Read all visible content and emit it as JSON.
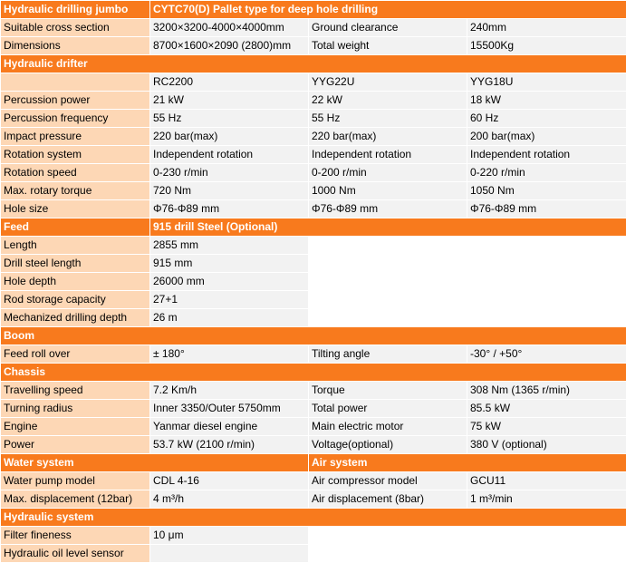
{
  "colors": {
    "header": "#f87a1d",
    "label_cell": "#fdd7b5",
    "value_cell": "#f2f2f2"
  },
  "jumbo": {
    "title": "Hydraulic drilling jumbo",
    "model": "CYTC70(D)  Pallet type for deep hole drilling",
    "cross_section_label": "Suitable cross section",
    "cross_section_value": "3200×3200-4000×4000mm",
    "ground_clearance_label": "Ground clearance",
    "ground_clearance_value": "240mm",
    "dimensions_label": "Dimensions",
    "dimensions_value": "8700×1600×2090 (2800)mm",
    "weight_label": "Total weight",
    "weight_value": "15500Kg"
  },
  "drifter": {
    "title": "Hydraulic drifter",
    "models": [
      "RC2200",
      "YYG22U",
      "YYG18U"
    ],
    "rows": [
      {
        "label": "Percussion power",
        "values": [
          "21 kW",
          "22 kW",
          "18 kW"
        ]
      },
      {
        "label": "Percussion frequency",
        "values": [
          "55 Hz",
          "55 Hz",
          "60 Hz"
        ]
      },
      {
        "label": "Impact pressure",
        "values": [
          "220  bar(max)",
          "220  bar(max)",
          "200  bar(max)"
        ]
      },
      {
        "label": "Rotation system",
        "values": [
          "Independent rotation",
          "Independent rotation",
          "Independent rotation"
        ]
      },
      {
        "label": "Rotation speed",
        "values": [
          "0-230 r/min",
          "0-200 r/min",
          "0-220 r/min"
        ]
      },
      {
        "label": "Max. rotary torque",
        "values": [
          "720 Nm",
          "1000 Nm",
          "1050 Nm"
        ]
      },
      {
        "label": "Hole size",
        "values": [
          "Φ76-Φ89 mm",
          "Φ76-Φ89 mm",
          "Φ76-Φ89 mm"
        ]
      }
    ]
  },
  "feed": {
    "title": "Feed",
    "subtitle": "915 drill Steel (Optional)",
    "rows": [
      {
        "label": "Length",
        "value": "2855 mm"
      },
      {
        "label": "Drill steel length",
        "value": "915 mm"
      },
      {
        "label": "Hole depth",
        "value": "26000 mm"
      },
      {
        "label": "Rod storage capacity",
        "value": "27+1"
      },
      {
        "label": "Mechanized drilling depth",
        "value": "26 m"
      }
    ]
  },
  "boom": {
    "title": "Boom",
    "feed_roll_label": "Feed roll over",
    "feed_roll_value": "± 180°",
    "tilting_label": "Tilting angle",
    "tilting_value": "-30° / +50°"
  },
  "chassis": {
    "title": "Chassis",
    "rows": [
      {
        "label": "Travelling speed",
        "value": "7.2 Km/h",
        "label2": "Torque",
        "value2": "308 Nm (1365 r/min)"
      },
      {
        "label": "Turning radius",
        "value": "Inner 3350/Outer 5750mm",
        "label2": "Total power",
        "value2": "85.5 kW"
      },
      {
        "label": "Engine",
        "value": "Yanmar diesel engine",
        "label2": "Main electric motor",
        "value2": "75 kW"
      },
      {
        "label": "Power",
        "value": "53.7 kW (2100 r/min)",
        "label2": "Voltage(optional)",
        "value2": "380 V (optional)"
      }
    ]
  },
  "water_air": {
    "water_title": "Water system",
    "air_title": "Air system",
    "rows": [
      {
        "label": "Water pump model",
        "value": "CDL 4-16",
        "label2": "Air compressor model",
        "value2": "GCU11"
      },
      {
        "label": "Max. displacement (12bar)",
        "value": "4 m³/h",
        "label2": "Air displacement (8bar)",
        "value2": "1 m³/min"
      }
    ]
  },
  "hydraulic": {
    "title": "Hydraulic system",
    "rows": [
      {
        "label": "Filter fineness",
        "value": "10 μm"
      },
      {
        "label": "Hydraulic oil level sensor",
        "value": ""
      }
    ]
  }
}
